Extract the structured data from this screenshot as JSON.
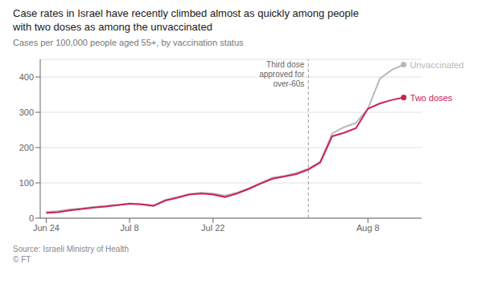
{
  "chart_data": {
    "type": "line",
    "title": "Case rates in Israel have recently climbed almost as quickly among people\nwith two doses as among the unvaccinated",
    "subtitle": "Cases per 100,000 people aged 55+, by vaccination status",
    "source": "Source: Israeli Ministry of Health\n© FT",
    "x": [
      0,
      2,
      4,
      6,
      8,
      10,
      12,
      14,
      16,
      18,
      20,
      22,
      24,
      26,
      28,
      30,
      32,
      34,
      36,
      38,
      40,
      42,
      44,
      46,
      48,
      50,
      52,
      54,
      56,
      58,
      60
    ],
    "series": [
      {
        "name": "Unvaccinated",
        "color": "#b8b8b8",
        "values": [
          18,
          20,
          25,
          28,
          32,
          35,
          38,
          42,
          40,
          36,
          52,
          60,
          68,
          72,
          70,
          64,
          72,
          85,
          100,
          115,
          120,
          128,
          140,
          160,
          240,
          258,
          270,
          310,
          395,
          420,
          435
        ]
      },
      {
        "name": "Two doses",
        "color": "#cc2255",
        "values": [
          15,
          17,
          22,
          26,
          30,
          33,
          37,
          41,
          39,
          35,
          50,
          58,
          67,
          70,
          67,
          60,
          70,
          83,
          98,
          112,
          118,
          125,
          138,
          158,
          232,
          242,
          255,
          310,
          325,
          335,
          342
        ]
      }
    ],
    "xlim": [
      -1,
      63
    ],
    "xticks": [
      {
        "value": 0,
        "label": "Jun 24"
      },
      {
        "value": 14,
        "label": "Jul 8"
      },
      {
        "value": 28,
        "label": "Jul 22"
      },
      {
        "value": 54,
        "label": "Aug 8"
      }
    ],
    "ylim": [
      0,
      450
    ],
    "yticks": [
      0,
      100,
      200,
      300,
      400
    ],
    "grid": true,
    "annotations": [
      {
        "x": 44,
        "text": "Third dose\napproved for\nover-60s"
      }
    ]
  }
}
